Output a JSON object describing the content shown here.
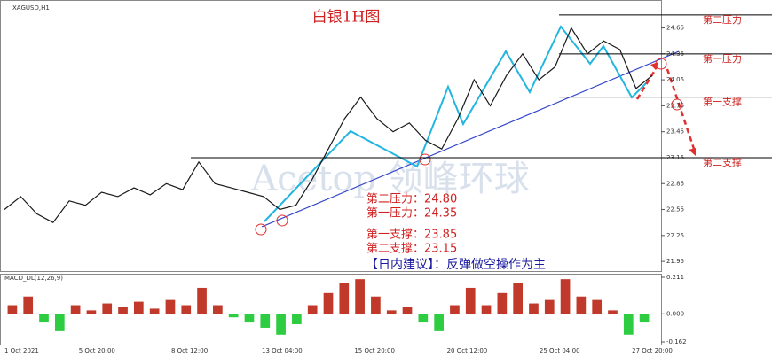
{
  "chart_data": [
    {
      "type": "line",
      "title": "白银1H图",
      "symbol_label": "XAGUSD,H1",
      "watermark": "Acetop 领峰环球",
      "color": "#1a1a1a",
      "x_labels": [
        "1 Oct 2021",
        "5 Oct 20:00",
        "8 Oct 12:00",
        "13 Oct 04:00",
        "15 Oct 20:00",
        "20 Oct 12:00",
        "25 Oct 04:00",
        "27 Oct 20:00"
      ],
      "values": [
        22.55,
        22.7,
        22.5,
        22.4,
        22.65,
        22.6,
        22.75,
        22.7,
        22.8,
        22.72,
        22.85,
        22.78,
        23.1,
        22.85,
        22.8,
        22.75,
        22.7,
        22.55,
        22.6,
        22.9,
        23.25,
        23.6,
        23.85,
        23.6,
        23.45,
        23.55,
        23.35,
        23.25,
        23.6,
        24.05,
        23.75,
        24.1,
        24.35,
        24.05,
        24.2,
        24.65,
        24.35,
        24.5,
        24.4,
        23.95,
        24.1
      ],
      "ylim": [
        21.9,
        24.85
      ],
      "yticks": [
        21.95,
        22.25,
        22.55,
        22.85,
        23.15,
        23.45,
        23.75,
        24.05,
        24.35,
        24.65
      ],
      "levels": [
        {
          "name": "第二压力",
          "value": 24.8,
          "text": "第二压力：24.80",
          "color": "#000000"
        },
        {
          "name": "第一压力",
          "value": 24.35,
          "text": "第一压力：24.35",
          "color": "#000000"
        },
        {
          "name": "第一支撑",
          "value": 23.85,
          "text": "第一支撑：23.85",
          "color": "#000000"
        },
        {
          "name": "第二支撑",
          "value": 23.15,
          "text": "第二支撑：23.15",
          "color": "#000000"
        }
      ],
      "advice": "【日内建议】：反弹做空操作为主"
    },
    {
      "type": "bar",
      "title": "MACD_DL(12,26,9)",
      "colors": {
        "positive": "#c0392b",
        "negative": "#2ecc40"
      },
      "values": [
        0.05,
        0.1,
        -0.05,
        -0.1,
        0.05,
        0.02,
        0.06,
        0.04,
        0.07,
        0.03,
        0.08,
        0.05,
        0.15,
        0.05,
        -0.02,
        -0.05,
        -0.08,
        -0.12,
        -0.06,
        0.05,
        0.12,
        0.18,
        0.2,
        0.1,
        0.02,
        0.04,
        -0.05,
        -0.1,
        0.05,
        0.15,
        0.05,
        0.12,
        0.18,
        0.06,
        0.08,
        0.2,
        0.1,
        0.08,
        0.02,
        -0.12,
        -0.05
      ],
      "ylim": [
        -0.162,
        0.211
      ],
      "yticks": [
        0.211,
        {
          "value": 0,
          "label": "0.000"
        },
        -0.162
      ]
    }
  ]
}
